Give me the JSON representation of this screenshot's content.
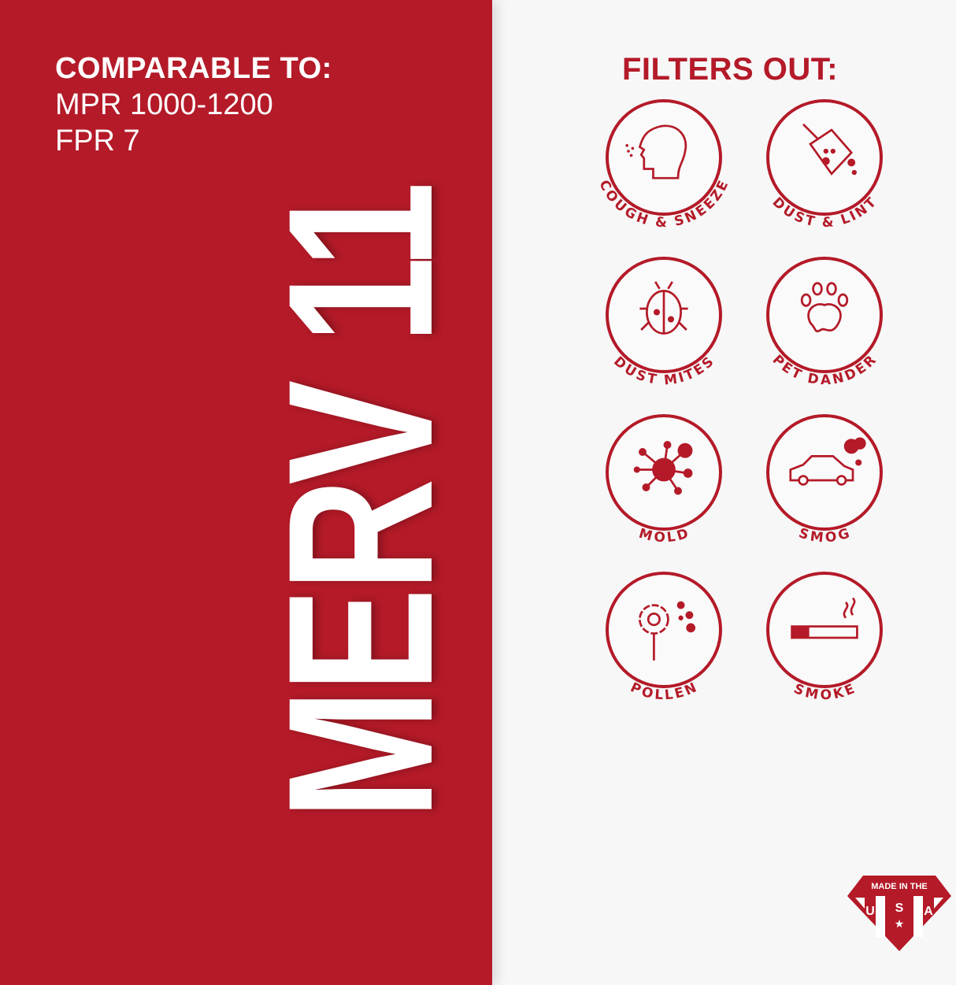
{
  "left_panel": {
    "comparable_title": "COMPARABLE TO:",
    "comparable_items": [
      "MPR 1000-1200",
      "FPR 7"
    ],
    "rating": "MERV 11",
    "background_color": "#b41a28"
  },
  "right_panel": {
    "title": "FILTERS OUT:",
    "accent_color": "#b41a28",
    "items": [
      {
        "label": "COUGH & SNEEZE",
        "icon": "head-sneeze-icon"
      },
      {
        "label": "DUST & LINT",
        "icon": "dustpan-icon"
      },
      {
        "label": "DUST MITES",
        "icon": "bug-icon"
      },
      {
        "label": "PET DANDER",
        "icon": "paw-icon"
      },
      {
        "label": "MOLD",
        "icon": "mold-spore-icon"
      },
      {
        "label": "SMOG",
        "icon": "car-exhaust-icon"
      },
      {
        "label": "POLLEN",
        "icon": "flower-icon"
      },
      {
        "label": "SMOKE",
        "icon": "cigarette-icon"
      }
    ]
  },
  "badge": {
    "text": "MADE IN THE",
    "letters": [
      "U",
      "S",
      "A"
    ]
  }
}
